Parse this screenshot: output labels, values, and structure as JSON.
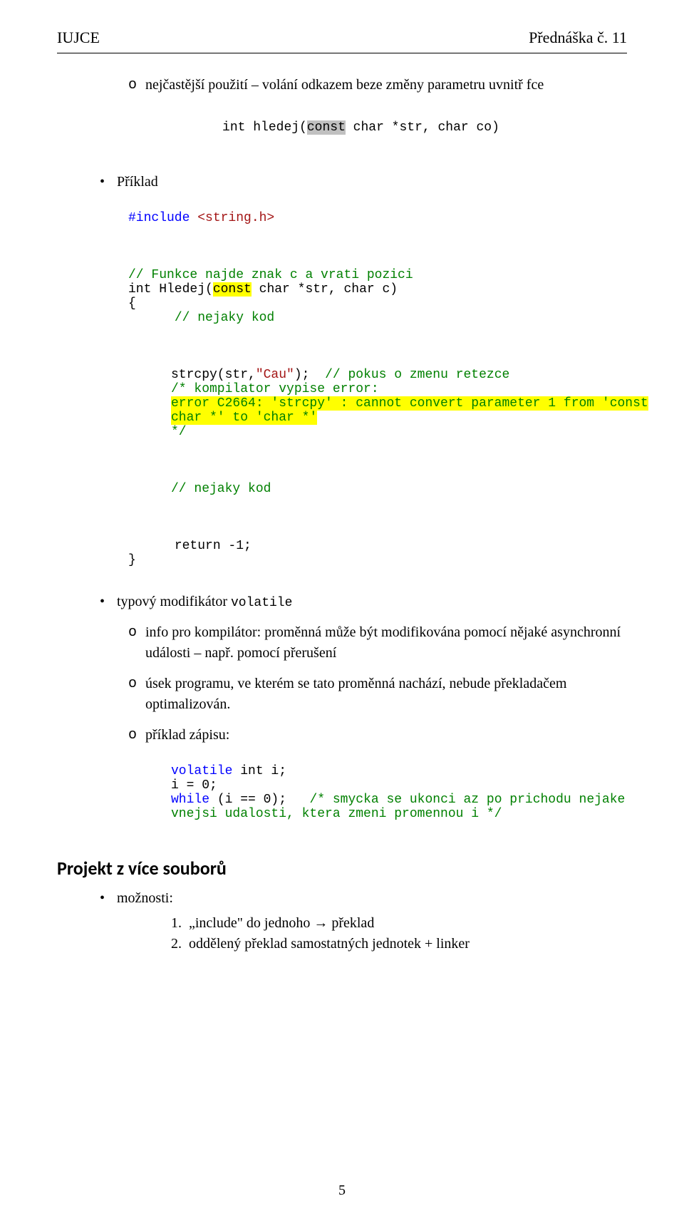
{
  "header": {
    "left": "IUJCE",
    "right": "Přednáška č. 11"
  },
  "colors": {
    "comment": "#008000",
    "keyword": "#0000ff",
    "string": "#a31515",
    "highlight_bg": "#ffff00",
    "gray_highlight_bg": "#c0c0c0",
    "text": "#000000",
    "background": "#ffffff"
  },
  "sec1": {
    "o1": {
      "prefix": "nejčastější použití – volání odkazem beze změny parametru uvnitř fce",
      "code_pre": "int hledej(",
      "code_const": "const",
      "code_post": " char *str, char co)"
    },
    "bullet1": "Příklad",
    "inc1": "#include ",
    "inc2": "<string.h>",
    "c1a": "// Funkce najde znak c a vrati pozici",
    "c2_pre": "int Hledej(",
    "c2_const": "const",
    "c2_post": " char *str, char c)",
    "c3": "{",
    "c4": "// nejaky kod",
    "c5a": "strcpy(str,",
    "c5b": "\"Cau\"",
    "c5c": ");  ",
    "c5d": "// pokus o zmenu retezce",
    "c6": "/* kompilator vypise error:",
    "c7": "error C2664: 'strcpy' : cannot convert parameter 1 from 'const\nchar *' to 'char *'",
    "c8": "*/",
    "c9": "// nejaky kod",
    "c10": "return -1;",
    "c11": "}",
    "bullet2_pre": "typový modifikátor ",
    "bullet2_code": "volatile",
    "o2": "info pro kompilátor: proměnná může být modifikována pomocí nějaké asynchronní události – např. pomocí přerušení",
    "o3": "úsek programu, ve kterém se tato proměnná nachází, nebude překladačem optimalizován.",
    "o4": "příklad zápisu:",
    "v1a": "volatile",
    "v1b": " int i;",
    "v2": "i = 0;",
    "v3a": "while",
    "v3b": " (i == 0);   ",
    "v3c": "/* smycka se ukonci az po prichodu nejake\nvnejsi udalosti, ktera zmeni promennou i */"
  },
  "sec2": {
    "title": "Projekt z více souborů",
    "bullet": "možnosti:",
    "n1": "„include\" do jednoho → překlad",
    "n2": "oddělený překlad samostatných jednotek + linker"
  },
  "page_number": "5"
}
